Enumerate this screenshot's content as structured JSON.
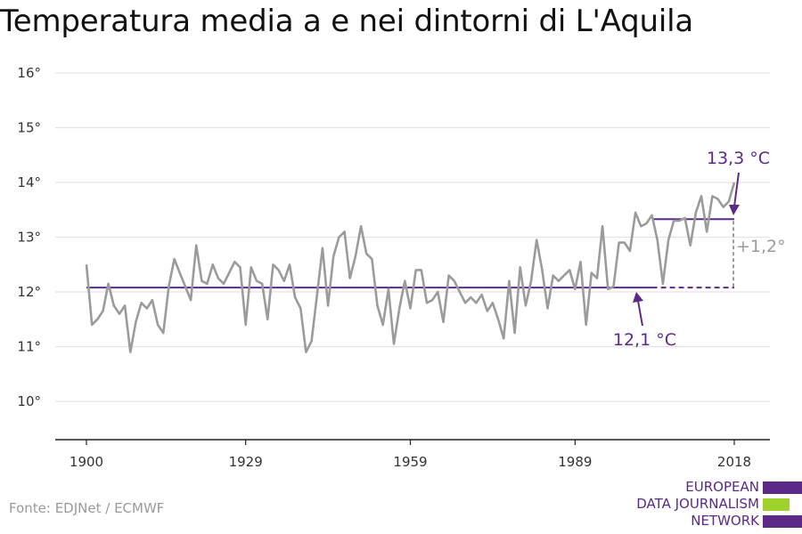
{
  "title": "Temperatura media a e nei dintorni di L'Aquila",
  "source": "Fonte: EDJNet / ECMWF",
  "logo": {
    "lines": [
      "EUROPEAN",
      "DATA JOURNALISM",
      "NETWORK"
    ]
  },
  "colors": {
    "series": "#9b9b9b",
    "purple": "#5b2a86",
    "green": "#9ed12b",
    "grid": "#e3e3e3",
    "axis": "#222222"
  },
  "chart_data": {
    "type": "line",
    "xlim": [
      1900,
      2018
    ],
    "ylim": [
      9.3,
      16.2
    ],
    "x_ticks": [
      1900,
      1929,
      1959,
      1989,
      2018
    ],
    "y_ticks": [
      10,
      11,
      12,
      13,
      14,
      15,
      16
    ],
    "y_tick_suffix": "°",
    "grid": true,
    "series": [
      {
        "x": [
          1900,
          1901,
          1902,
          1903,
          1904,
          1905,
          1906,
          1907,
          1908,
          1909,
          1910,
          1911,
          1912,
          1913,
          1914,
          1915,
          1916,
          1917,
          1918,
          1919,
          1920,
          1921,
          1922,
          1923,
          1924,
          1925,
          1926,
          1927,
          1928,
          1929,
          1930,
          1931,
          1932,
          1933,
          1934,
          1935,
          1936,
          1937,
          1938,
          1939,
          1940,
          1941,
          1942,
          1943,
          1944,
          1945,
          1946,
          1947,
          1948,
          1949,
          1950,
          1951,
          1952,
          1953,
          1954,
          1955,
          1956,
          1957,
          1958,
          1959,
          1960,
          1961,
          1962,
          1963,
          1964,
          1965,
          1966,
          1967,
          1968,
          1969,
          1970,
          1971,
          1972,
          1973,
          1974,
          1975,
          1976,
          1977,
          1978,
          1979,
          1980,
          1981,
          1982,
          1983,
          1984,
          1985,
          1986,
          1987,
          1988,
          1989,
          1990,
          1991,
          1992,
          1993,
          1994,
          1995,
          1996,
          1997,
          1998,
          1999,
          2000,
          2001,
          2002,
          2003,
          2004,
          2005,
          2006,
          2007,
          2008,
          2009,
          2010,
          2011,
          2012,
          2013,
          2014,
          2015,
          2016,
          2017,
          2018
        ],
        "y": [
          12.5,
          11.4,
          11.5,
          11.65,
          12.15,
          11.75,
          11.6,
          11.75,
          10.9,
          11.45,
          11.8,
          11.7,
          11.85,
          11.4,
          11.25,
          12.1,
          12.6,
          12.35,
          12.1,
          11.85,
          12.85,
          12.2,
          12.15,
          12.5,
          12.25,
          12.15,
          12.35,
          12.55,
          12.45,
          11.4,
          12.45,
          12.2,
          12.15,
          11.5,
          12.5,
          12.4,
          12.2,
          12.5,
          11.9,
          11.7,
          10.9,
          11.1,
          11.95,
          12.8,
          11.75,
          12.65,
          13.0,
          13.1,
          12.25,
          12.65,
          13.2,
          12.7,
          12.6,
          11.75,
          11.4,
          12.05,
          11.05,
          11.7,
          12.2,
          11.7,
          12.4,
          12.4,
          11.8,
          11.85,
          12.0,
          11.45,
          12.3,
          12.2,
          12.0,
          11.8,
          11.9,
          11.8,
          11.95,
          11.65,
          11.8,
          11.5,
          11.15,
          12.2,
          11.25,
          12.45,
          11.75,
          12.2,
          12.95,
          12.4,
          11.7,
          12.3,
          12.2,
          12.3,
          12.4,
          12.05,
          12.55,
          11.4,
          12.35,
          12.25,
          13.2,
          12.05,
          12.1,
          12.9,
          12.9,
          12.75,
          13.45,
          13.2,
          13.25,
          13.4,
          12.95,
          12.15,
          12.95,
          13.3,
          13.3,
          13.35,
          12.85,
          13.45,
          13.75,
          13.1,
          13.75,
          13.7,
          13.55,
          13.65,
          14.0
        ]
      }
    ],
    "reference_lines": [
      {
        "label": "12,1 °C",
        "value": 12.08,
        "from": 1900,
        "to": 2003,
        "dash_to": 2018
      },
      {
        "label": "13,3 °C",
        "value": 13.33,
        "from": 2003,
        "to": 2018
      }
    ],
    "difference_label": "+1,2°"
  }
}
